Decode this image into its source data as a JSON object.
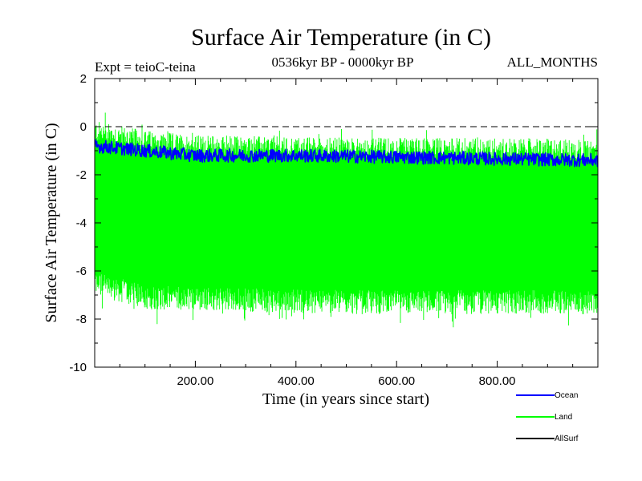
{
  "chart_data": {
    "type": "line",
    "title": "Surface Air Temperature (in C)",
    "subtitle_left": "Expt = teioC-teina",
    "subtitle_center": "0536kyr BP - 0000kyr BP",
    "subtitle_right": "ALL_MONTHS",
    "xlabel": "Time (in years since start)",
    "ylabel": "Surface Air Temperature (in C)",
    "xlim": [
      0,
      1000
    ],
    "ylim": [
      -10,
      2
    ],
    "x_ticks": [
      200,
      400,
      600,
      800
    ],
    "x_tick_labels": [
      "200.00",
      "400.00",
      "600.00",
      "800.00"
    ],
    "y_ticks": [
      2,
      0,
      -2,
      -4,
      -6,
      -8,
      -10
    ],
    "y_tick_labels": [
      "2",
      "0",
      "-2",
      "-4",
      "-6",
      "-8",
      "-10"
    ],
    "reference_line": {
      "y": 0,
      "style": "dashed"
    },
    "series": [
      {
        "name": "Land",
        "color": "#00ff00",
        "kind": "seasonal band",
        "x_range": [
          0,
          1000
        ],
        "upper_mean": [
          [
            0,
            -0.2
          ],
          [
            100,
            -0.6
          ],
          [
            200,
            -0.8
          ],
          [
            500,
            -0.9
          ],
          [
            800,
            -0.9
          ],
          [
            1000,
            -1.0
          ]
        ],
        "lower_mean": [
          [
            0,
            -6.5
          ],
          [
            100,
            -7.1
          ],
          [
            500,
            -7.3
          ],
          [
            800,
            -7.3
          ],
          [
            1000,
            -7.3
          ]
        ],
        "max": 1.1,
        "min": -8.7
      },
      {
        "name": "Ocean",
        "color": "#0000ff",
        "kind": "line",
        "x_range": [
          0,
          1000
        ],
        "mean": [
          [
            0,
            -0.8
          ],
          [
            100,
            -1.0
          ],
          [
            200,
            -1.2
          ],
          [
            400,
            -1.2
          ],
          [
            700,
            -1.3
          ],
          [
            1000,
            -1.4
          ]
        ],
        "min": -2.0,
        "max": -0.4
      },
      {
        "name": "AllSurf",
        "color": "#000000",
        "kind": "line"
      }
    ],
    "legend": [
      {
        "label": "Ocean",
        "color": "#0000ff"
      },
      {
        "label": "Land",
        "color": "#00ff00"
      },
      {
        "label": "AllSurf",
        "color": "#000000"
      }
    ],
    "legend_position": "bottom-right"
  }
}
